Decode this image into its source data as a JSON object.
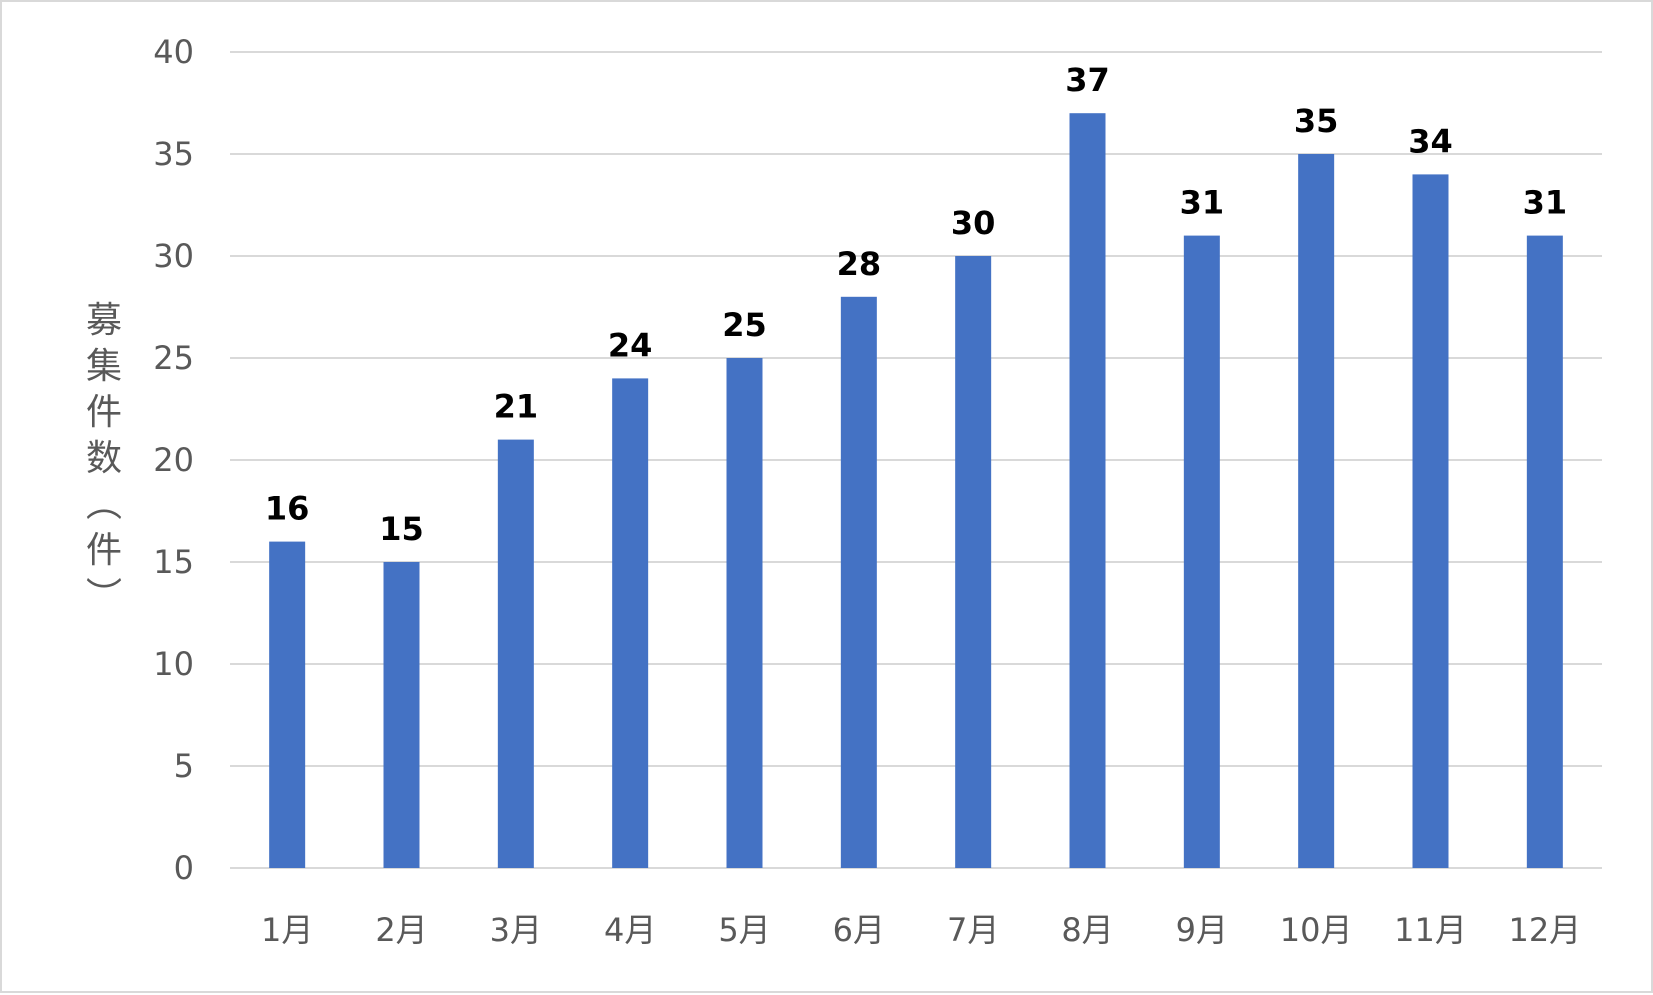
{
  "chart_data": {
    "type": "bar",
    "categories": [
      "1月",
      "2月",
      "3月",
      "4月",
      "5月",
      "6月",
      "7月",
      "8月",
      "9月",
      "10月",
      "11月",
      "12月"
    ],
    "values": [
      16,
      15,
      21,
      24,
      25,
      28,
      30,
      37,
      31,
      35,
      34,
      31
    ],
    "title": "",
    "xlabel": "",
    "ylabel": "募集件数（件）",
    "ylim": [
      0,
      40
    ],
    "yticks": [
      0,
      5,
      10,
      15,
      20,
      25,
      30,
      35,
      40
    ],
    "grid": true,
    "legend": "none",
    "data_labels": true,
    "colors": {
      "bar": "#4472c4",
      "gridline": "#d9d9d9",
      "axis_text": "#595959",
      "data_label": "#000000",
      "border": "#d9d9d9"
    }
  }
}
